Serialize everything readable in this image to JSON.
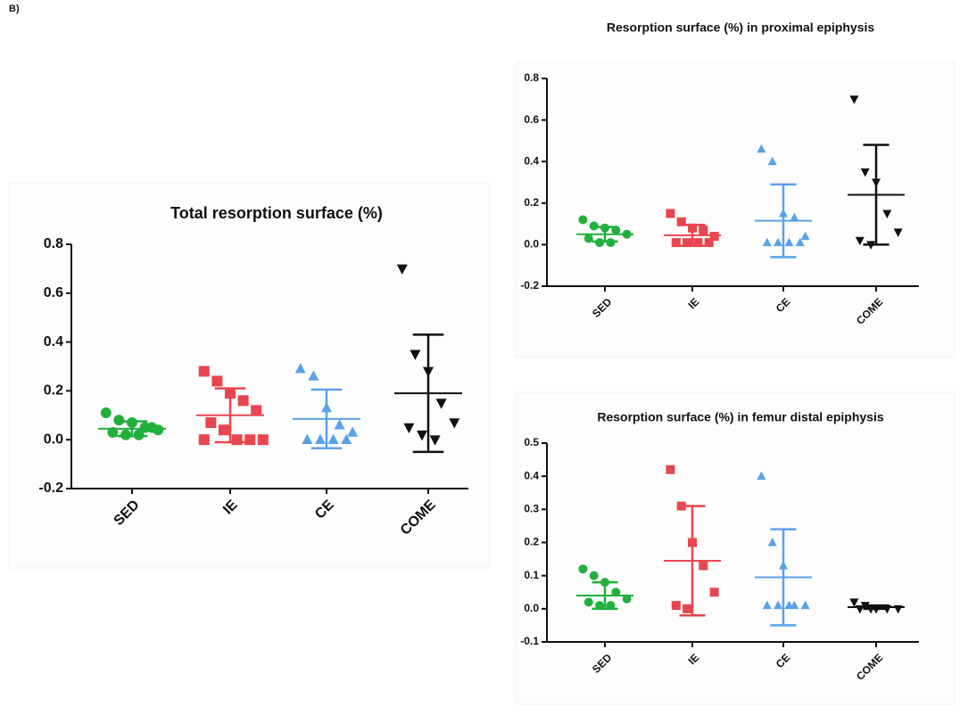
{
  "panel_label": "B)",
  "chart_data": [
    {
      "type": "dot",
      "title": "Total resorption surface (%)",
      "categories": [
        "SED",
        "IE",
        "CE",
        "COME"
      ],
      "colors": [
        "#21b03b",
        "#e8464f",
        "#5aa2e8",
        "#111111"
      ],
      "markers": [
        "circle",
        "square",
        "triangle-up",
        "triangle-down"
      ],
      "points": [
        [
          0.11,
          0.08,
          0.07,
          0.05,
          0.04,
          0.03,
          0.02,
          0.02,
          0.05
        ],
        [
          0.28,
          0.24,
          0.19,
          0.16,
          0.12,
          0.07,
          0.04,
          0.0,
          0.0,
          0.0,
          0.0
        ],
        [
          0.29,
          0.26,
          0.13,
          0.06,
          0.03,
          0.0,
          0.0,
          0.0,
          0.0
        ],
        [
          0.7,
          0.35,
          0.28,
          0.15,
          0.07,
          0.05,
          0.02,
          0.0
        ]
      ],
      "mean": [
        0.045,
        0.1,
        0.085,
        0.19
      ],
      "sd": [
        0.03,
        0.11,
        0.12,
        0.24
      ],
      "ylim": [
        -0.2,
        0.8
      ],
      "yticks": [
        -0.2,
        {
          "value": 0,
          "label": "0.0"
        },
        0.2,
        0.4,
        0.6,
        0.8
      ]
    },
    {
      "type": "dot",
      "title": "Resorption surface (%) in proximal epiphysis",
      "categories": [
        "SED",
        "IE",
        "CE",
        "COME"
      ],
      "colors": [
        "#21b03b",
        "#e8464f",
        "#5aa2e8",
        "#111111"
      ],
      "markers": [
        "circle",
        "square",
        "triangle-up",
        "triangle-down"
      ],
      "points": [
        [
          0.12,
          0.09,
          0.08,
          0.07,
          0.05,
          0.03,
          0.01,
          0.01
        ],
        [
          0.15,
          0.11,
          0.08,
          0.07,
          0.04,
          0.01,
          0.01,
          0.01,
          0.01
        ],
        [
          0.46,
          0.4,
          0.15,
          0.13,
          0.04,
          0.01,
          0.01,
          0.01,
          0.01
        ],
        [
          0.7,
          0.35,
          0.3,
          0.15,
          0.06,
          0.02,
          0.0
        ]
      ],
      "mean": [
        0.05,
        0.045,
        0.115,
        0.24
      ],
      "sd": [
        0.035,
        0.05,
        0.175,
        0.24
      ],
      "ylim": [
        -0.2,
        0.8
      ],
      "yticks": [
        -0.2,
        {
          "value": 0,
          "label": "0.0"
        },
        0.2,
        0.4,
        0.6,
        0.8
      ]
    },
    {
      "type": "dot",
      "title": "Resorption surface (%) in femur distal epiphysis",
      "categories": [
        "SED",
        "IE",
        "CE",
        "COME"
      ],
      "colors": [
        "#21b03b",
        "#e8464f",
        "#5aa2e8",
        "#111111"
      ],
      "markers": [
        "circle",
        "square",
        "triangle-up",
        "triangle-down"
      ],
      "points": [
        [
          0.12,
          0.1,
          0.08,
          0.05,
          0.03,
          0.02,
          0.01,
          0.01
        ],
        [
          0.42,
          0.31,
          0.2,
          0.13,
          0.05,
          0.01,
          0.0
        ],
        [
          0.4,
          0.2,
          0.13,
          0.01,
          0.01,
          0.01,
          0.01,
          0.01
        ],
        [
          0.02,
          0.01,
          0.0,
          0.0,
          0.0,
          0.0,
          0.0
        ]
      ],
      "mean": [
        0.04,
        0.145,
        0.095,
        0.005
      ],
      "sd": [
        0.04,
        0.165,
        0.145,
        0.005
      ],
      "ylim": [
        -0.1,
        0.5
      ],
      "yticks": [
        -0.1,
        {
          "value": 0,
          "label": "0.0"
        },
        0.1,
        0.2,
        0.3,
        0.4,
        0.5
      ]
    }
  ]
}
